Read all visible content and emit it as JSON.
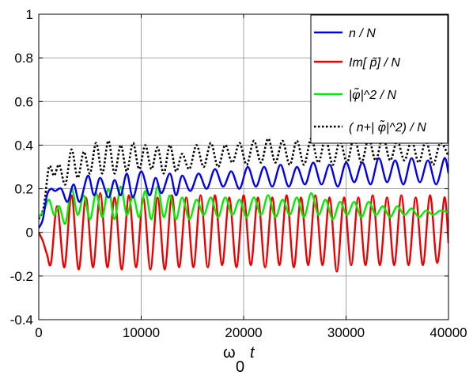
{
  "chart_data": {
    "type": "line",
    "xlabel": "ω0 t",
    "xlabel_main": "ω",
    "xlabel_sub": "0",
    "xlabel_var": "t",
    "xlim": [
      0,
      40000
    ],
    "ylim": [
      -0.4,
      1
    ],
    "xticks": [
      "0",
      "10000",
      "20000",
      "30000",
      "40000"
    ],
    "yticks": [
      "-0.4",
      "-0.2",
      "0",
      "0.2",
      "0.4",
      "0.6",
      "0.8",
      "1"
    ],
    "grid": true,
    "legend_position": "top-right",
    "series": [
      {
        "name": "n / N",
        "color": "#0000ee",
        "style": "solid",
        "x": [
          0,
          400,
          800,
          1200,
          1600,
          2200,
          2800,
          3400,
          4000,
          4800,
          5400,
          6000,
          6800,
          7400,
          8000,
          8600,
          9200,
          10000,
          10800,
          11400,
          12000,
          12800,
          13400,
          14000,
          14800,
          15600,
          16400,
          17200,
          18000,
          18800,
          19600,
          20400,
          21200,
          22000,
          22800,
          23600,
          24400,
          25200,
          26000,
          26800,
          27600,
          28400,
          29200,
          30000,
          30800,
          31600,
          32400,
          33200,
          34000,
          34800,
          35600,
          36400,
          37200,
          38000,
          38800,
          39600,
          40000
        ],
        "y": [
          0.02,
          0.06,
          0.17,
          0.2,
          0.19,
          0.2,
          0.14,
          0.22,
          0.14,
          0.26,
          0.17,
          0.25,
          0.16,
          0.24,
          0.17,
          0.27,
          0.16,
          0.28,
          0.17,
          0.25,
          0.18,
          0.27,
          0.17,
          0.26,
          0.19,
          0.27,
          0.2,
          0.29,
          0.21,
          0.28,
          0.2,
          0.3,
          0.21,
          0.3,
          0.21,
          0.31,
          0.21,
          0.3,
          0.22,
          0.32,
          0.22,
          0.31,
          0.21,
          0.32,
          0.23,
          0.32,
          0.22,
          0.34,
          0.23,
          0.33,
          0.22,
          0.34,
          0.23,
          0.33,
          0.22,
          0.34,
          0.27
        ]
      },
      {
        "name": "Im[ p̃] / N",
        "color": "#ee0000",
        "style": "solid",
        "x": [
          0,
          400,
          800,
          1200,
          1800,
          2500,
          3200,
          3900,
          4600,
          5300,
          6000,
          6700,
          7400,
          8100,
          8800,
          9500,
          10200,
          10900,
          11600,
          12300,
          13000,
          13700,
          14400,
          15100,
          15800,
          16500,
          17200,
          17900,
          18600,
          19300,
          20000,
          20700,
          21400,
          22100,
          22800,
          23500,
          24200,
          24900,
          25600,
          26300,
          27000,
          27700,
          28400,
          29100,
          29800,
          30500,
          31200,
          31900,
          32600,
          33300,
          34000,
          34700,
          35400,
          36100,
          36800,
          37500,
          38200,
          38900,
          39600,
          40000
        ],
        "y": [
          0.0,
          -0.04,
          -0.1,
          -0.14,
          0.12,
          -0.16,
          0.17,
          -0.17,
          0.16,
          -0.16,
          0.18,
          -0.16,
          0.16,
          -0.17,
          0.17,
          -0.16,
          0.16,
          -0.17,
          0.16,
          -0.17,
          0.17,
          -0.16,
          0.16,
          -0.16,
          0.17,
          -0.16,
          0.17,
          -0.15,
          0.16,
          -0.16,
          0.17,
          -0.15,
          0.16,
          -0.16,
          0.16,
          -0.15,
          0.17,
          -0.16,
          0.16,
          -0.15,
          0.17,
          -0.15,
          0.16,
          -0.18,
          0.16,
          -0.15,
          0.16,
          -0.15,
          0.17,
          -0.15,
          0.16,
          -0.15,
          0.17,
          -0.15,
          0.16,
          -0.15,
          0.17,
          -0.14,
          0.16,
          -0.05
        ]
      },
      {
        "name": "|φ̃|^2 / N",
        "color": "#00ee00",
        "style": "solid",
        "x": [
          0,
          500,
          1000,
          1500,
          2000,
          2600,
          3200,
          3800,
          4400,
          5000,
          5600,
          6200,
          6800,
          7400,
          8000,
          8600,
          9200,
          9800,
          10400,
          11000,
          11600,
          12200,
          12800,
          13400,
          14000,
          14700,
          15400,
          16100,
          16800,
          17500,
          18200,
          18900,
          19600,
          20300,
          21000,
          21700,
          22400,
          23100,
          23800,
          24500,
          25200,
          25900,
          26600,
          27300,
          28000,
          28700,
          29400,
          30100,
          30800,
          31500,
          32200,
          32900,
          33600,
          34300,
          35000,
          35700,
          36400,
          37100,
          37800,
          38500,
          39200,
          40000
        ],
        "y": [
          0.07,
          0.1,
          0.15,
          0.08,
          0.12,
          0.04,
          0.2,
          0.08,
          0.17,
          0.06,
          0.18,
          0.07,
          0.2,
          0.06,
          0.21,
          0.08,
          0.17,
          0.07,
          0.19,
          0.06,
          0.21,
          0.07,
          0.17,
          0.06,
          0.16,
          0.06,
          0.15,
          0.08,
          0.16,
          0.07,
          0.16,
          0.08,
          0.15,
          0.07,
          0.16,
          0.08,
          0.17,
          0.07,
          0.15,
          0.08,
          0.16,
          0.07,
          0.18,
          0.08,
          0.15,
          0.06,
          0.14,
          0.08,
          0.14,
          0.07,
          0.14,
          0.08,
          0.12,
          0.07,
          0.12,
          0.08,
          0.11,
          0.07,
          0.1,
          0.08,
          0.1,
          0.09
        ]
      },
      {
        "name": "( n+| φ̃|^2) / N",
        "color": "#000000",
        "style": "dotted",
        "x": [
          0,
          500,
          1000,
          1500,
          2000,
          2600,
          3200,
          3800,
          4400,
          5000,
          5600,
          6200,
          6800,
          7400,
          8000,
          8600,
          9200,
          9800,
          10400,
          11000,
          11600,
          12200,
          12800,
          13400,
          14000,
          14700,
          15400,
          16100,
          16800,
          17500,
          18200,
          18900,
          19600,
          20300,
          21000,
          21700,
          22400,
          23100,
          23800,
          24500,
          25200,
          25900,
          26600,
          27300,
          28000,
          28700,
          29400,
          30100,
          30800,
          31500,
          32200,
          32900,
          33600,
          34300,
          35000,
          35700,
          36400,
          37100,
          37800,
          38500,
          39200,
          40000
        ],
        "y": [
          0.06,
          0.12,
          0.3,
          0.26,
          0.31,
          0.22,
          0.38,
          0.25,
          0.37,
          0.27,
          0.41,
          0.27,
          0.42,
          0.27,
          0.4,
          0.28,
          0.41,
          0.29,
          0.4,
          0.29,
          0.39,
          0.27,
          0.4,
          0.28,
          0.36,
          0.29,
          0.4,
          0.3,
          0.41,
          0.3,
          0.4,
          0.32,
          0.41,
          0.31,
          0.42,
          0.32,
          0.43,
          0.32,
          0.42,
          0.31,
          0.42,
          0.31,
          0.43,
          0.32,
          0.43,
          0.31,
          0.42,
          0.32,
          0.44,
          0.32,
          0.43,
          0.33,
          0.44,
          0.33,
          0.42,
          0.33,
          0.42,
          0.32,
          0.42,
          0.31,
          0.41,
          0.35
        ]
      }
    ]
  }
}
